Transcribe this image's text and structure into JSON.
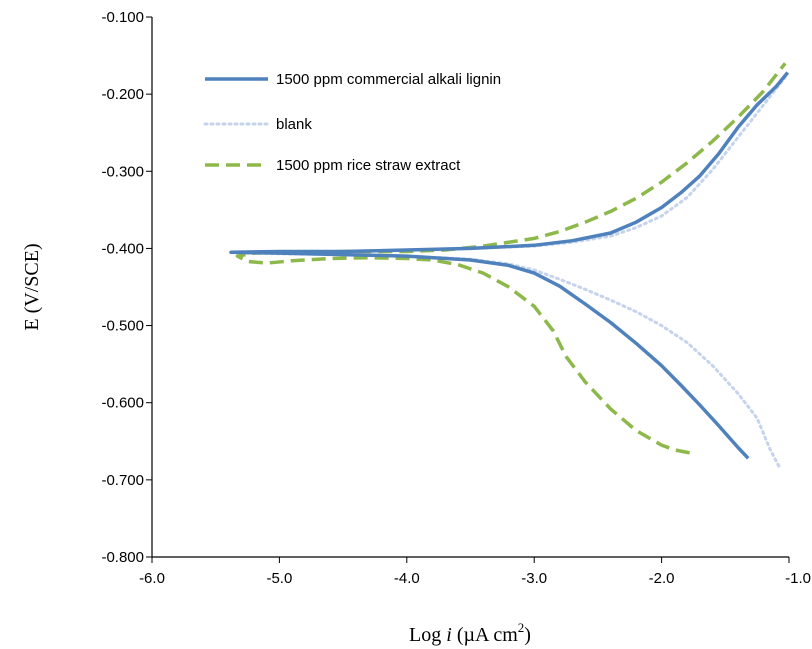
{
  "chart_data": {
    "type": "line",
    "xlabel_prefix": "Log",
    "xlabel_var": "i",
    "xlabel_unit": "(µA cm",
    "xlabel_exp": "2",
    "xlabel_close": ")",
    "ylabel": "E (V/SCE)",
    "xlim": [
      -6.0,
      -1.0
    ],
    "ylim": [
      -0.8,
      -0.1
    ],
    "x_ticks": [
      -6.0,
      -5.0,
      -4.0,
      -3.0,
      -2.0,
      -1.0
    ],
    "x_tick_labels": [
      "-6.0",
      "-5.0",
      "-4.0",
      "-3.0",
      "-2.0",
      "-1.0"
    ],
    "y_ticks": [
      -0.1,
      -0.2,
      -0.3,
      -0.4,
      -0.5,
      -0.6,
      -0.7,
      -0.8
    ],
    "y_tick_labels": [
      "-0.100",
      "-0.200",
      "-0.300",
      "-0.400",
      "-0.500",
      "-0.600",
      "-0.700",
      "-0.800"
    ],
    "grid": false,
    "legend_position": "top-left",
    "series": [
      {
        "name": "1500 ppm commercial alkali lignin",
        "color": "#4f81bd",
        "style": "solid",
        "points": [
          [
            -1.32,
            -0.672
          ],
          [
            -1.4,
            -0.658
          ],
          [
            -1.55,
            -0.63
          ],
          [
            -1.7,
            -0.603
          ],
          [
            -1.85,
            -0.577
          ],
          [
            -2.0,
            -0.552
          ],
          [
            -2.2,
            -0.523
          ],
          [
            -2.4,
            -0.496
          ],
          [
            -2.6,
            -0.472
          ],
          [
            -2.8,
            -0.449
          ],
          [
            -3.0,
            -0.432
          ],
          [
            -3.2,
            -0.422
          ],
          [
            -3.5,
            -0.415
          ],
          [
            -4.0,
            -0.41
          ],
          [
            -4.5,
            -0.408
          ],
          [
            -5.0,
            -0.406
          ],
          [
            -5.38,
            -0.405
          ],
          [
            -5.0,
            -0.404
          ],
          [
            -4.5,
            -0.404
          ],
          [
            -4.0,
            -0.402
          ],
          [
            -3.5,
            -0.4
          ],
          [
            -3.0,
            -0.396
          ],
          [
            -2.7,
            -0.39
          ],
          [
            -2.4,
            -0.38
          ],
          [
            -2.2,
            -0.366
          ],
          [
            -2.0,
            -0.347
          ],
          [
            -1.85,
            -0.328
          ],
          [
            -1.7,
            -0.306
          ],
          [
            -1.55,
            -0.277
          ],
          [
            -1.4,
            -0.243
          ],
          [
            -1.25,
            -0.214
          ],
          [
            -1.1,
            -0.19
          ],
          [
            -1.01,
            -0.172
          ]
        ]
      },
      {
        "name": "blank",
        "color": "#c5d3ec",
        "style": "dotted",
        "points": [
          [
            -1.08,
            -0.682
          ],
          [
            -1.15,
            -0.66
          ],
          [
            -1.25,
            -0.62
          ],
          [
            -1.4,
            -0.588
          ],
          [
            -1.6,
            -0.552
          ],
          [
            -1.8,
            -0.522
          ],
          [
            -2.0,
            -0.5
          ],
          [
            -2.2,
            -0.482
          ],
          [
            -2.4,
            -0.467
          ],
          [
            -2.6,
            -0.453
          ],
          [
            -2.8,
            -0.44
          ],
          [
            -3.0,
            -0.428
          ],
          [
            -3.2,
            -0.42
          ],
          [
            -3.5,
            -0.414
          ],
          [
            -4.0,
            -0.41
          ],
          [
            -4.5,
            -0.408
          ],
          [
            -5.0,
            -0.407
          ],
          [
            -5.3,
            -0.406
          ],
          [
            -5.0,
            -0.405
          ],
          [
            -4.5,
            -0.404
          ],
          [
            -4.0,
            -0.402
          ],
          [
            -3.5,
            -0.4
          ],
          [
            -3.0,
            -0.397
          ],
          [
            -2.7,
            -0.392
          ],
          [
            -2.4,
            -0.384
          ],
          [
            -2.2,
            -0.373
          ],
          [
            -2.0,
            -0.358
          ],
          [
            -1.8,
            -0.334
          ],
          [
            -1.6,
            -0.298
          ],
          [
            -1.4,
            -0.256
          ],
          [
            -1.2,
            -0.214
          ],
          [
            -1.03,
            -0.178
          ]
        ]
      },
      {
        "name": "1500 ppm rice straw extract",
        "color": "#8db84a",
        "style": "dashed",
        "points": [
          [
            -1.78,
            -0.665
          ],
          [
            -1.9,
            -0.661
          ],
          [
            -2.0,
            -0.655
          ],
          [
            -2.2,
            -0.636
          ],
          [
            -2.4,
            -0.608
          ],
          [
            -2.6,
            -0.573
          ],
          [
            -2.75,
            -0.54
          ],
          [
            -2.85,
            -0.507
          ],
          [
            -3.0,
            -0.475
          ],
          [
            -3.2,
            -0.45
          ],
          [
            -3.4,
            -0.432
          ],
          [
            -3.6,
            -0.421
          ],
          [
            -3.8,
            -0.415
          ],
          [
            -4.0,
            -0.413
          ],
          [
            -4.3,
            -0.412
          ],
          [
            -4.6,
            -0.413
          ],
          [
            -4.9,
            -0.416
          ],
          [
            -5.1,
            -0.419
          ],
          [
            -5.25,
            -0.417
          ],
          [
            -5.33,
            -0.41
          ],
          [
            -5.2,
            -0.406
          ],
          [
            -5.0,
            -0.405
          ],
          [
            -4.5,
            -0.404
          ],
          [
            -4.0,
            -0.404
          ],
          [
            -3.7,
            -0.402
          ],
          [
            -3.4,
            -0.397
          ],
          [
            -3.0,
            -0.387
          ],
          [
            -2.8,
            -0.378
          ],
          [
            -2.6,
            -0.366
          ],
          [
            -2.4,
            -0.352
          ],
          [
            -2.2,
            -0.335
          ],
          [
            -2.0,
            -0.314
          ],
          [
            -1.8,
            -0.289
          ],
          [
            -1.6,
            -0.261
          ],
          [
            -1.4,
            -0.23
          ],
          [
            -1.2,
            -0.196
          ],
          [
            -1.03,
            -0.16
          ]
        ]
      }
    ]
  }
}
